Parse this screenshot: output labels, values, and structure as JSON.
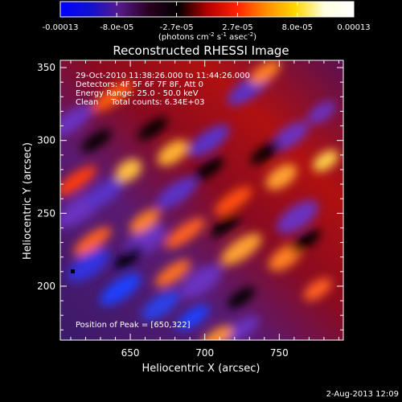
{
  "colorbar": {
    "tick_labels": [
      "-0.00013",
      "-8.0e-05",
      "-2.7e-05",
      "2.7e-05",
      "8.0e-05",
      "0.00013"
    ],
    "tick_values": [
      -0.00013,
      -8e-05,
      -2.7e-05,
      2.7e-05,
      8e-05,
      0.00013
    ],
    "range": [
      -0.00013,
      0.00013
    ],
    "units_text": "(photons cm",
    "units_exp1": "-2",
    "units_mid": " s",
    "units_exp2": "-1",
    "units_tail": " asec",
    "units_exp3": "-2",
    "units_close": ")",
    "colors": [
      "#0000ff",
      "#1010d0",
      "#551a8b",
      "#2a0020",
      "#000000",
      "#b00000",
      "#ff2000",
      "#ff8c00",
      "#ffd700",
      "#ffffe0",
      "#ffffff"
    ]
  },
  "plot": {
    "title": "Reconstructed RHESSI Image",
    "xlabel": "Heliocentric X (arcsec)",
    "ylabel": "Heliocentric Y (arcsec)",
    "xlim": [
      603,
      793
    ],
    "ylim": [
      163,
      355
    ],
    "xticks": [
      650,
      700,
      750
    ],
    "yticks": [
      200,
      250,
      300,
      350
    ],
    "info_lines": [
      "29-Oct-2010 11:38:26.000 to 11:44:26.000",
      "Detectors: 4F 5F 6F 7F 8F, Att 0",
      "Energy Range: 25.0 - 50.0 keV",
      "Clean     Total counts: 6.34E+03"
    ],
    "peak_text": "Position of Peak = [650,322]",
    "peak_position": [
      650,
      322
    ]
  },
  "footer": {
    "date": "2-Aug-2013 12:09"
  }
}
